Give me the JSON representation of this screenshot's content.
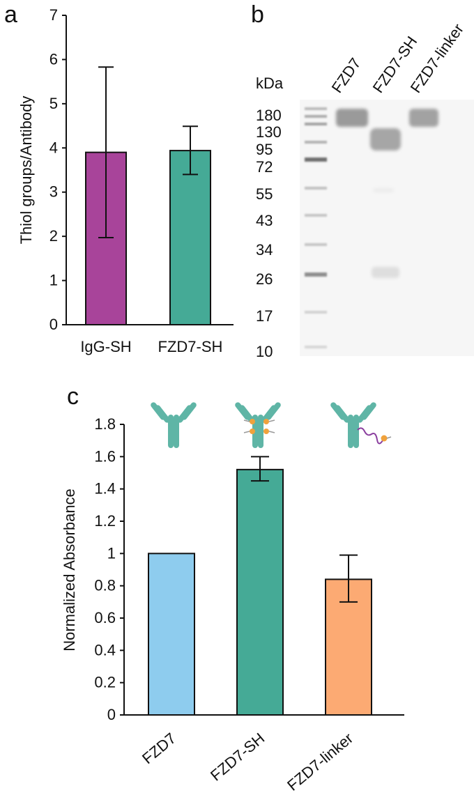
{
  "panels": {
    "a": "a",
    "b": "b",
    "c": "c"
  },
  "colors": {
    "igg_sh": "#A8449A",
    "fzd7_sh": "#45AA96",
    "fzd7": "#8ECCEE",
    "fzd7_linker": "#FCAA73",
    "antibody_icon": "#5FB5A6",
    "linker": "#8A3E9E",
    "payload": "#F0A23C"
  },
  "chart_data": [
    {
      "panel": "a",
      "type": "bar",
      "ylabel": "Thiol groups/Antibody",
      "ylim": [
        0,
        7
      ],
      "yticks": [
        "0",
        "1",
        "2",
        "3",
        "4",
        "5",
        "6",
        "7"
      ],
      "categories": [
        "IgG-SH",
        "FZD7-SH"
      ],
      "values": [
        3.9,
        3.94
      ],
      "error_low": [
        1.97,
        3.4
      ],
      "error_high": [
        5.83,
        4.49
      ],
      "grid": false
    },
    {
      "panel": "c",
      "type": "bar",
      "ylabel": "Normalized Absorbance",
      "ylim": [
        0,
        1.8
      ],
      "yticks": [
        "0",
        "0.2",
        "0.4",
        "0.6",
        "0.8",
        "1",
        "1.2",
        "1.4",
        "1.6",
        "1.8"
      ],
      "categories": [
        "FZD7",
        "FZD7-SH",
        "FZD7-linker"
      ],
      "values": [
        1.0,
        1.52,
        0.84
      ],
      "error_low": [
        1.0,
        1.45,
        0.7
      ],
      "error_high": [
        1.0,
        1.6,
        0.99
      ],
      "grid": false
    }
  ],
  "gel": {
    "unit_label": "kDa",
    "markers": [
      "180",
      "130",
      "95",
      "72",
      "55",
      "43",
      "34",
      "26",
      "17",
      "10"
    ],
    "lanes": [
      "FZD7",
      "FZD7-SH",
      "FZD7-linker"
    ]
  }
}
